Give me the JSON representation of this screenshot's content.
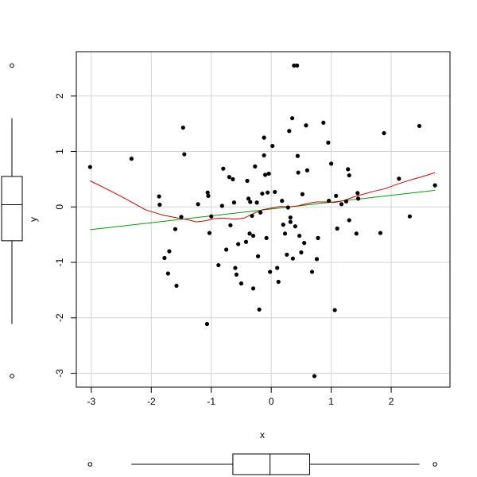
{
  "chart_data": {
    "type": "scatter",
    "title": "",
    "xlabel": "x",
    "ylabel": "y",
    "xlim": [
      -3.25,
      2.98
    ],
    "ylim": [
      -3.25,
      2.8
    ],
    "x_ticks": [
      -3,
      -2,
      -1,
      0,
      1,
      2
    ],
    "y_ticks": [
      -3,
      -2,
      -1,
      0,
      1,
      2
    ],
    "x_tick_labels": [
      "-3",
      "-2",
      "-1",
      "0",
      "1",
      "2"
    ],
    "y_tick_labels": [
      "-3",
      "-2",
      "-1",
      "0",
      "1",
      "2"
    ],
    "grid": true,
    "colors": {
      "points": "#000000",
      "linear_fit": "#00a000",
      "smooth_fit": "#d40000",
      "grid": "#d3d3d3",
      "box": "#000000"
    },
    "points": [
      [
        -3.02,
        0.72
      ],
      [
        -2.33,
        0.87
      ],
      [
        -1.87,
        0.19
      ],
      [
        -1.86,
        0.04
      ],
      [
        -1.78,
        -0.92
      ],
      [
        -1.72,
        -1.2
      ],
      [
        -1.7,
        -0.8
      ],
      [
        -1.6,
        -0.4
      ],
      [
        -1.58,
        -1.42
      ],
      [
        -1.5,
        -0.18
      ],
      [
        -1.47,
        1.43
      ],
      [
        -1.45,
        0.95
      ],
      [
        -1.22,
        0.05
      ],
      [
        -1.07,
        -2.11
      ],
      [
        -1.06,
        0.26
      ],
      [
        -1.05,
        0.2
      ],
      [
        -1.03,
        -0.47
      ],
      [
        -1.0,
        -0.17
      ],
      [
        -0.88,
        -1.05
      ],
      [
        -0.82,
        0.02
      ],
      [
        -0.8,
        0.69
      ],
      [
        -0.75,
        -0.77
      ],
      [
        -0.7,
        0.54
      ],
      [
        -0.68,
        -0.33
      ],
      [
        -0.64,
        0.5
      ],
      [
        -0.62,
        0.08
      ],
      [
        -0.6,
        -1.1
      ],
      [
        -0.58,
        -1.22
      ],
      [
        -0.55,
        -0.67
      ],
      [
        -0.5,
        -1.38
      ],
      [
        -0.42,
        -0.63
      ],
      [
        -0.4,
        0.47
      ],
      [
        -0.38,
        0.15
      ],
      [
        -0.36,
        -0.48
      ],
      [
        -0.35,
        0.09
      ],
      [
        -0.32,
        -0.16
      ],
      [
        -0.3,
        -1.47
      ],
      [
        -0.3,
        -0.52
      ],
      [
        -0.27,
        0.73
      ],
      [
        -0.24,
        0.08
      ],
      [
        -0.22,
        -0.89
      ],
      [
        -0.2,
        -1.85
      ],
      [
        -0.18,
        -0.1
      ],
      [
        -0.15,
        0.24
      ],
      [
        -0.12,
        1.25
      ],
      [
        -0.12,
        0.93
      ],
      [
        -0.1,
        0.58
      ],
      [
        -0.08,
        -0.56
      ],
      [
        -0.06,
        0.26
      ],
      [
        -0.04,
        0.6
      ],
      [
        -0.02,
        -1.17
      ],
      [
        0.02,
        1.1
      ],
      [
        0.06,
        0.27
      ],
      [
        0.1,
        -1.1
      ],
      [
        0.12,
        -1.35
      ],
      [
        0.18,
        0.11
      ],
      [
        0.2,
        -0.32
      ],
      [
        0.23,
        -0.48
      ],
      [
        0.26,
        -0.86
      ],
      [
        0.28,
        -0.01
      ],
      [
        0.3,
        1.37
      ],
      [
        0.32,
        -0.19
      ],
      [
        0.32,
        -0.27
      ],
      [
        0.35,
        1.6
      ],
      [
        0.36,
        -0.93
      ],
      [
        0.38,
        2.55
      ],
      [
        0.4,
        -0.35
      ],
      [
        0.43,
        2.55
      ],
      [
        0.44,
        0.92
      ],
      [
        0.45,
        0.62
      ],
      [
        0.47,
        -0.52
      ],
      [
        0.5,
        -0.82
      ],
      [
        0.52,
        0.23
      ],
      [
        0.55,
        -0.65
      ],
      [
        0.58,
        1.47
      ],
      [
        0.6,
        0.66
      ],
      [
        0.68,
        -1.17
      ],
      [
        0.72,
        -3.05
      ],
      [
        0.76,
        -0.94
      ],
      [
        0.78,
        -0.56
      ],
      [
        0.87,
        1.52
      ],
      [
        0.95,
        1.16
      ],
      [
        0.96,
        0.11
      ],
      [
        1.0,
        0.78
      ],
      [
        1.06,
        -1.86
      ],
      [
        1.08,
        0.2
      ],
      [
        1.1,
        -0.39
      ],
      [
        1.17,
        0.05
      ],
      [
        1.25,
        0.1
      ],
      [
        1.28,
        0.68
      ],
      [
        1.3,
        0.57
      ],
      [
        1.3,
        -0.24
      ],
      [
        1.42,
        -0.48
      ],
      [
        1.44,
        0.25
      ],
      [
        1.45,
        0.15
      ],
      [
        1.82,
        -0.47
      ],
      [
        1.88,
        1.33
      ],
      [
        2.13,
        0.51
      ],
      [
        2.31,
        -0.17
      ],
      [
        2.47,
        1.46
      ],
      [
        2.73,
        0.39
      ]
    ],
    "linear_fit": [
      [
        -3.02,
        -0.41
      ],
      [
        2.73,
        0.3
      ]
    ],
    "smooth_fit": [
      [
        -3.02,
        0.47
      ],
      [
        -2.7,
        0.3
      ],
      [
        -2.4,
        0.13
      ],
      [
        -2.1,
        -0.05
      ],
      [
        -1.8,
        -0.15
      ],
      [
        -1.6,
        -0.19
      ],
      [
        -1.4,
        -0.23
      ],
      [
        -1.25,
        -0.27
      ],
      [
        -1.1,
        -0.25
      ],
      [
        -0.95,
        -0.21
      ],
      [
        -0.8,
        -0.2
      ],
      [
        -0.6,
        -0.22
      ],
      [
        -0.45,
        -0.2
      ],
      [
        -0.3,
        -0.12
      ],
      [
        -0.15,
        -0.05
      ],
      [
        0.0,
        -0.02
      ],
      [
        0.15,
        0.01
      ],
      [
        0.3,
        0.0
      ],
      [
        0.45,
        0.02
      ],
      [
        0.6,
        0.06
      ],
      [
        0.75,
        0.09
      ],
      [
        0.9,
        0.09
      ],
      [
        1.05,
        0.08
      ],
      [
        1.2,
        0.11
      ],
      [
        1.35,
        0.17
      ],
      [
        1.5,
        0.22
      ],
      [
        1.7,
        0.28
      ],
      [
        1.9,
        0.33
      ],
      [
        2.1,
        0.41
      ],
      [
        2.3,
        0.48
      ],
      [
        2.5,
        0.54
      ],
      [
        2.73,
        0.62
      ]
    ],
    "y_boxplot": {
      "min": -2.11,
      "q1": -0.61,
      "median": 0.04,
      "q3": 0.55,
      "max": 1.6,
      "outliers": [
        2.55,
        -3.05
      ]
    },
    "x_boxplot": {
      "min": -2.33,
      "q1": -0.64,
      "median": -0.02,
      "q3": 0.64,
      "max": 2.47,
      "outliers": [
        -3.02,
        2.73
      ]
    }
  }
}
